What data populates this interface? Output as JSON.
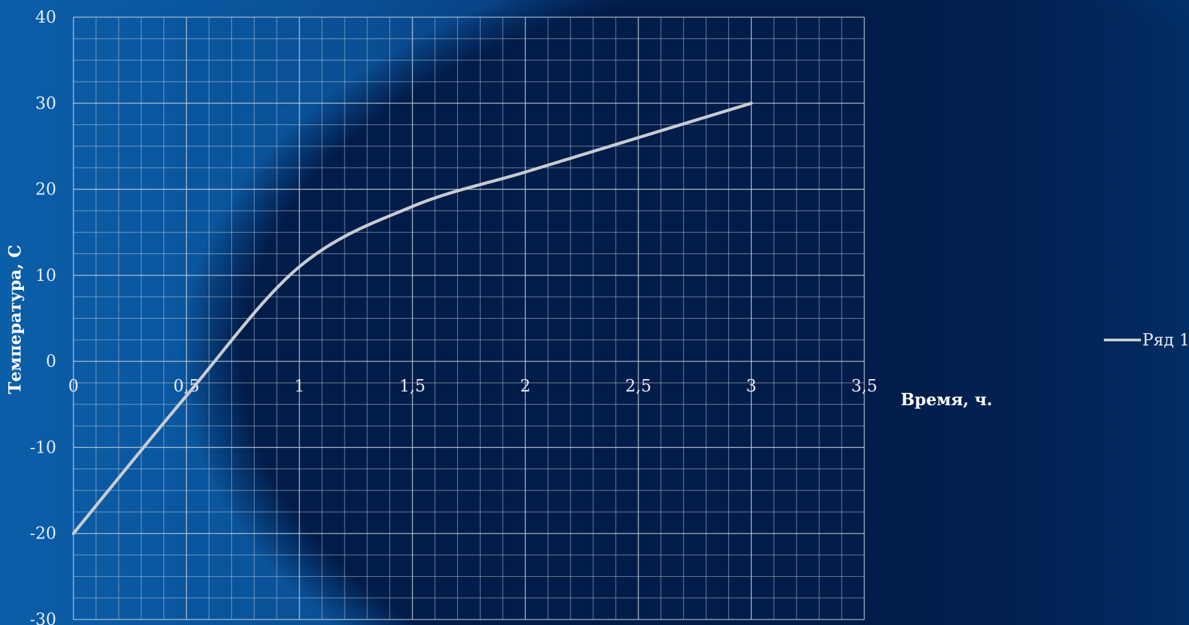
{
  "chart_data": {
    "type": "line",
    "title": "",
    "xlabel": "Время, ч.",
    "ylabel": "Температура, С",
    "xlim": [
      0,
      3.5
    ],
    "ylim": [
      -30,
      40
    ],
    "x_ticks": [
      0,
      0.5,
      1,
      1.5,
      2,
      2.5,
      3,
      3.5
    ],
    "x_tick_labels": [
      "0",
      "0,5",
      "1",
      "1,5",
      "2",
      "2,5",
      "3",
      "3,5"
    ],
    "y_ticks": [
      -30,
      -20,
      -10,
      0,
      10,
      20,
      30,
      40
    ],
    "y_tick_labels": [
      "-30",
      "-20",
      "-10",
      "0",
      "10",
      "20",
      "30",
      "40"
    ],
    "grid": true,
    "legend_position": "right",
    "series": [
      {
        "name": "Ряд 1",
        "color": "#c8ccd2",
        "x": [
          0,
          0.5,
          1,
          1.5,
          2,
          2.5,
          3
        ],
        "y": [
          -20,
          -4,
          11,
          18,
          22,
          26,
          30
        ]
      }
    ]
  },
  "colors": {
    "background_light": "#0b5ea8",
    "background_dark": "#021e4d",
    "grid": "#c9d3de",
    "line": "#c8ccd2",
    "text": "#e8eef7"
  }
}
